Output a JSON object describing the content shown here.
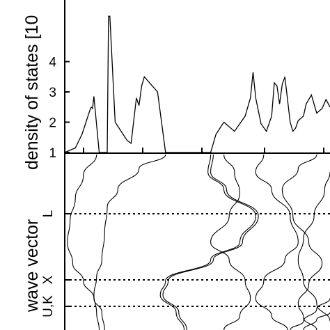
{
  "chart_data": [
    {
      "type": "line",
      "title": "",
      "ylabel": "density of states [10",
      "xlabel": "",
      "yticks": [
        "1",
        "2",
        "3",
        "4"
      ],
      "ylim": [
        0.95,
        5.5
      ],
      "xlim": [
        0,
        1
      ],
      "grid": false,
      "series": [
        {
          "x": [
            0.0,
            0.04,
            0.065,
            0.08,
            0.095,
            0.1,
            0.105,
            0.108,
            0.11,
            0.13,
            0.145,
            0.16,
            0.165,
            0.17,
            0.19,
            0.22,
            0.235,
            0.25,
            0.27,
            0.28,
            0.29,
            0.3,
            0.35,
            0.38,
            0.4,
            0.405,
            0.41,
            0.42,
            0.43,
            0.44,
            0.46,
            0.48,
            0.5,
            0.52,
            0.53,
            0.54,
            0.545,
            0.55,
            0.57,
            0.6,
            0.64,
            0.68,
            0.7,
            0.71,
            0.72,
            0.74,
            0.76,
            0.78,
            0.79,
            0.8,
            0.81,
            0.82,
            0.83,
            0.85,
            0.86,
            0.87,
            0.88,
            0.9,
            0.91,
            0.93,
            0.95,
            0.97,
            0.985,
            1.0
          ],
          "y": [
            1.0,
            1.15,
            1.6,
            2.0,
            2.4,
            2.5,
            2.45,
            2.7,
            2.85,
            1.0,
            1.0,
            1.0,
            5.5,
            5.5,
            2.0,
            1.6,
            1.4,
            1.3,
            2.8,
            2.55,
            3.2,
            3.5,
            3.0,
            1.0,
            1.0,
            1.0,
            1.0,
            1.0,
            1.0,
            1.0,
            1.0,
            1.0,
            1.0,
            1.0,
            1.0,
            1.0,
            1.0,
            1.0,
            1.6,
            2.0,
            1.7,
            2.2,
            2.8,
            3.65,
            2.8,
            1.95,
            1.7,
            2.2,
            3.3,
            3.2,
            2.6,
            3.25,
            3.5,
            2.0,
            1.7,
            1.8,
            2.05,
            2.2,
            2.6,
            2.9,
            2.3,
            2.45,
            2.75,
            2.5
          ]
        }
      ]
    },
    {
      "type": "line",
      "title": "",
      "ylabel": "wave vector",
      "xlabel": "",
      "yticks": [
        "L",
        "X",
        "U,K"
      ],
      "reference_lines": [
        "L",
        "X",
        "U,K"
      ],
      "grid": false,
      "series": [
        {
          "x": [
            0.12,
            0.07,
            0.04,
            0.02,
            0.01,
            0.03,
            0.07,
            0.11,
            0.14,
            0.15
          ],
          "y": [
            0.0,
            0.12,
            0.25,
            0.38,
            0.5,
            0.62,
            0.72,
            0.82,
            0.9,
            1.0
          ]
        },
        {
          "x": [
            0.38,
            0.28,
            0.2,
            0.16,
            0.15,
            0.14,
            0.12,
            0.11,
            0.12,
            0.13
          ],
          "y": [
            0.0,
            0.08,
            0.2,
            0.3,
            0.45,
            0.6,
            0.7,
            0.8,
            0.9,
            1.0
          ]
        },
        {
          "x": [
            0.55,
            0.54,
            0.6,
            0.72,
            0.66,
            0.55,
            0.38,
            0.36,
            0.42,
            0.45
          ],
          "y": [
            0.0,
            0.1,
            0.2,
            0.35,
            0.5,
            0.6,
            0.72,
            0.8,
            0.9,
            1.0
          ]
        },
        {
          "x": [
            0.56,
            0.55,
            0.61,
            0.73,
            0.67,
            0.56,
            0.39,
            0.37,
            0.43,
            0.46
          ],
          "y": [
            0.0,
            0.1,
            0.2,
            0.35,
            0.5,
            0.6,
            0.72,
            0.8,
            0.9,
            1.0
          ]
        },
        {
          "x": [
            0.6,
            0.64,
            0.66,
            0.62,
            0.55,
            0.62,
            0.68,
            0.7,
            0.66,
            0.6
          ],
          "y": [
            0.0,
            0.1,
            0.22,
            0.35,
            0.5,
            0.6,
            0.72,
            0.82,
            0.92,
            1.0
          ]
        },
        {
          "x": [
            0.75,
            0.72,
            0.78,
            0.85,
            0.88,
            0.83,
            0.75,
            0.72,
            0.78,
            0.84
          ],
          "y": [
            0.0,
            0.1,
            0.2,
            0.35,
            0.5,
            0.6,
            0.72,
            0.82,
            0.92,
            1.0
          ]
        },
        {
          "x": [
            0.95,
            0.88,
            0.82,
            0.86,
            0.92,
            0.97,
            0.92,
            0.88,
            0.9,
            0.95
          ],
          "y": [
            0.0,
            0.08,
            0.2,
            0.35,
            0.5,
            0.62,
            0.74,
            0.85,
            0.93,
            1.0
          ]
        },
        {
          "x": [
            1.0,
            0.98,
            0.94,
            0.9,
            0.88,
            0.9,
            0.95,
            1.0
          ],
          "y": [
            0.1,
            0.2,
            0.35,
            0.48,
            0.6,
            0.72,
            0.85,
            0.95
          ]
        },
        {
          "x": [
            0.85,
            0.9,
            0.95,
            1.0
          ],
          "y": [
            1.0,
            0.95,
            0.88,
            0.82
          ]
        },
        {
          "x": [
            0.9,
            0.95,
            1.0
          ],
          "y": [
            1.0,
            0.94,
            0.9
          ]
        }
      ]
    }
  ]
}
